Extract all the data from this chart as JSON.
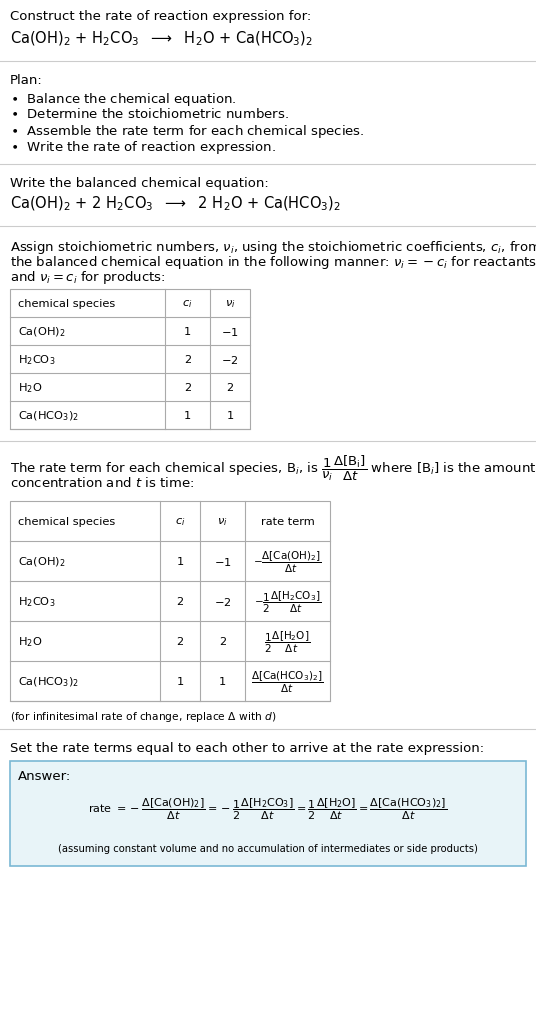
{
  "title_line1": "Construct the rate of reaction expression for:",
  "reaction_unbalanced": "Ca(OH)$_2$ + H$_2$CO$_3$  $\\longrightarrow$  H$_2$O + Ca(HCO$_3$)$_2$",
  "plan_header": "Plan:",
  "plan_items": [
    "$\\bullet$  Balance the chemical equation.",
    "$\\bullet$  Determine the stoichiometric numbers.",
    "$\\bullet$  Assemble the rate term for each chemical species.",
    "$\\bullet$  Write the rate of reaction expression."
  ],
  "balanced_header": "Write the balanced chemical equation:",
  "reaction_balanced": "Ca(OH)$_2$ + 2 H$_2$CO$_3$  $\\longrightarrow$  2 H$_2$O + Ca(HCO$_3$)$_2$",
  "stoich_lines": [
    "Assign stoichiometric numbers, $\\nu_i$, using the stoichiometric coefficients, $c_i$, from",
    "the balanced chemical equation in the following manner: $\\nu_i = -c_i$ for reactants",
    "and $\\nu_i = c_i$ for products:"
  ],
  "table1_headers": [
    "chemical species",
    "$c_i$",
    "$\\nu_i$"
  ],
  "table1_rows": [
    [
      "Ca(OH)$_2$",
      "1",
      "$-$1"
    ],
    [
      "H$_2$CO$_3$",
      "2",
      "$-$2"
    ],
    [
      "H$_2$O",
      "2",
      "2"
    ],
    [
      "Ca(HCO$_3$)$_2$",
      "1",
      "1"
    ]
  ],
  "rate_lines": [
    "The rate term for each chemical species, B$_i$, is $\\dfrac{1}{\\nu_i}\\dfrac{\\Delta[\\mathrm{B_i}]}{\\Delta t}$ where [B$_i$] is the amount",
    "concentration and $t$ is time:"
  ],
  "table2_headers": [
    "chemical species",
    "$c_i$",
    "$\\nu_i$",
    "rate term"
  ],
  "table2_rows": [
    [
      "Ca(OH)$_2$",
      "1",
      "$-$1",
      "$-\\dfrac{\\Delta[\\mathrm{Ca(OH)_2}]}{\\Delta t}$"
    ],
    [
      "H$_2$CO$_3$",
      "2",
      "$-$2",
      "$-\\dfrac{1}{2}\\dfrac{\\Delta[\\mathrm{H_2CO_3}]}{\\Delta t}$"
    ],
    [
      "H$_2$O",
      "2",
      "2",
      "$\\dfrac{1}{2}\\dfrac{\\Delta[\\mathrm{H_2O}]}{\\Delta t}$"
    ],
    [
      "Ca(HCO$_3$)$_2$",
      "1",
      "1",
      "$\\dfrac{\\Delta[\\mathrm{Ca(HCO_3)_2}]}{\\Delta t}$"
    ]
  ],
  "infinitesimal_note": "(for infinitesimal rate of change, replace $\\Delta$ with $d$)",
  "answer_intro": "Set the rate terms equal to each other to arrive at the rate expression:",
  "answer_label": "Answer:",
  "answer_equation": "rate $= -\\dfrac{\\Delta[\\mathrm{Ca(OH)_2}]}{\\Delta t} = -\\dfrac{1}{2}\\dfrac{\\Delta[\\mathrm{H_2CO_3}]}{\\Delta t} = \\dfrac{1}{2}\\dfrac{\\Delta[\\mathrm{H_2O}]}{\\Delta t} = \\dfrac{\\Delta[\\mathrm{Ca(HCO_3)_2}]}{\\Delta t}$",
  "answer_note": "(assuming constant volume and no accumulation of intermediates or side products)",
  "bg_color": "#ffffff",
  "answer_box_color": "#e8f4f8",
  "answer_box_border": "#7ab8d4",
  "text_color": "#000000",
  "separator_color": "#cccccc",
  "table_border_color": "#aaaaaa"
}
